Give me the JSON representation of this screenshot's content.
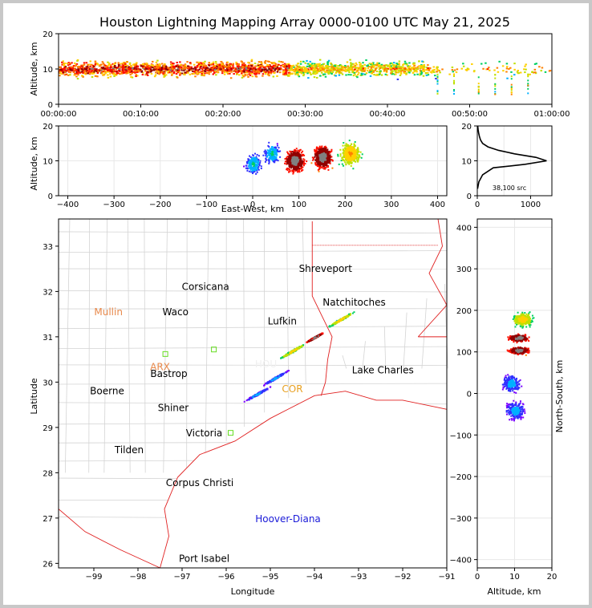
{
  "chart_data": [
    {
      "type": "scatter",
      "panel": "altitude-time",
      "title": "Houston Lightning Mapping Array 0000-0100 UTC May 21, 2025",
      "ylabel": "Altitude, km",
      "xlabel": "",
      "xlim": [
        "00:00:00",
        "01:00:00"
      ],
      "ylim": [
        0,
        20
      ],
      "x_tick_labels": [
        "00:00:00",
        "00:10:00",
        "00:20:00",
        "00:30:00",
        "00:40:00",
        "00:50:00",
        "01:00:00"
      ],
      "y_tick_labels": [
        "0",
        "10",
        "20"
      ],
      "source_density_band": {
        "altitude_km_min": 4,
        "altitude_km_max": 16,
        "altitude_km_peak": 10
      },
      "sparse_columns_after_minute": [
        46,
        48,
        51,
        53,
        55,
        57
      ]
    },
    {
      "type": "scatter",
      "panel": "altitude-east-west",
      "xlabel": "East-West, km",
      "ylabel": "Altitude, km",
      "xlim": [
        -420,
        420
      ],
      "ylim": [
        0,
        20
      ],
      "x_tick_labels": [
        "−400",
        "−300",
        "−200",
        "−100",
        "0",
        "100",
        "200",
        "300",
        "400"
      ],
      "y_tick_labels": [
        "0",
        "10",
        "20"
      ],
      "clusters": [
        {
          "x_km": 0,
          "alt_km": 9,
          "intensity": "low"
        },
        {
          "x_km": 90,
          "alt_km": 10,
          "intensity": "high"
        },
        {
          "x_km": 150,
          "alt_km": 11,
          "intensity": "high"
        },
        {
          "x_km": 210,
          "alt_km": 12,
          "intensity": "medium"
        },
        {
          "x_km": 40,
          "alt_km": 12,
          "intensity": "low"
        }
      ]
    },
    {
      "type": "line",
      "panel": "altitude-histogram",
      "xlim": [
        0,
        1400
      ],
      "ylim": [
        0,
        20
      ],
      "x_tick_labels": [
        "0",
        "1000"
      ],
      "y_tick_labels": [
        "0",
        "10",
        "20"
      ],
      "annotation": "38,100 src",
      "profile": [
        [
          5,
          2
        ],
        [
          30,
          4
        ],
        [
          100,
          6
        ],
        [
          300,
          8
        ],
        [
          900,
          9
        ],
        [
          1300,
          10
        ],
        [
          1100,
          11
        ],
        [
          700,
          12
        ],
        [
          400,
          13
        ],
        [
          200,
          14
        ],
        [
          100,
          15
        ],
        [
          60,
          16
        ],
        [
          40,
          17
        ],
        [
          25,
          18
        ],
        [
          15,
          19
        ],
        [
          8,
          20
        ]
      ]
    },
    {
      "type": "scatter",
      "panel": "plan-view-map",
      "xlabel": "Longitude",
      "ylabel": "Latitude",
      "xlim": [
        -99.8,
        -91
      ],
      "ylim": [
        25.9,
        33.6
      ],
      "x_tick_labels": [
        "−99",
        "−98",
        "−97",
        "−96",
        "−95",
        "−94",
        "−93",
        "−92",
        "−91"
      ],
      "y_tick_labels": [
        "26",
        "27",
        "28",
        "29",
        "30",
        "31",
        "32",
        "33"
      ],
      "cities": [
        {
          "name": "Shreveport",
          "lon": -93.75,
          "lat": 32.5,
          "color": "#000000"
        },
        {
          "name": "Corsicana",
          "lon": -96.47,
          "lat": 32.1,
          "color": "#000000"
        },
        {
          "name": "Mullin",
          "lon": -98.67,
          "lat": 31.55,
          "color": "#e8884a"
        },
        {
          "name": "Waco",
          "lon": -97.15,
          "lat": 31.55,
          "color": "#000000"
        },
        {
          "name": "Natchitoches",
          "lon": -93.1,
          "lat": 31.76,
          "color": "#000000"
        },
        {
          "name": "Lufkin",
          "lon": -94.73,
          "lat": 31.34,
          "color": "#000000"
        },
        {
          "name": "ARX",
          "lon": -97.5,
          "lat": 30.33,
          "color": "#e8884a"
        },
        {
          "name": "Bastrop",
          "lon": -97.3,
          "lat": 30.18,
          "color": "#000000"
        },
        {
          "name": "HOU",
          "lon": -95.1,
          "lat": 30.4,
          "color": "#f0f0f0"
        },
        {
          "name": "Lake Charles",
          "lon": -92.45,
          "lat": 30.26,
          "color": "#000000"
        },
        {
          "name": "Boerne",
          "lon": -98.7,
          "lat": 29.8,
          "color": "#000000"
        },
        {
          "name": "COR",
          "lon": -94.5,
          "lat": 29.85,
          "color": "#e8a020"
        },
        {
          "name": "Shiner",
          "lon": -97.2,
          "lat": 29.43,
          "color": "#000000"
        },
        {
          "name": "Victoria",
          "lon": -96.5,
          "lat": 28.87,
          "color": "#000000"
        },
        {
          "name": "Tilden",
          "lon": -98.2,
          "lat": 28.5,
          "color": "#000000"
        },
        {
          "name": "Corpus Christi",
          "lon": -96.6,
          "lat": 27.78,
          "color": "#000000"
        },
        {
          "name": "Hoover-Diana",
          "lon": -94.6,
          "lat": 26.98,
          "color": "#1a1ad8"
        },
        {
          "name": "Port Isabel",
          "lon": -96.5,
          "lat": 26.1,
          "color": "#000000"
        }
      ],
      "storm_clusters": [
        {
          "lon": -94.0,
          "lat": 31.0,
          "intensity": "high"
        },
        {
          "lon": -93.4,
          "lat": 31.4,
          "intensity": "medium"
        },
        {
          "lon": -94.5,
          "lat": 30.7,
          "intensity": "medium"
        },
        {
          "lon": -95.3,
          "lat": 29.75,
          "intensity": "low"
        },
        {
          "lon": -94.9,
          "lat": 30.1,
          "intensity": "low"
        }
      ]
    },
    {
      "type": "scatter",
      "panel": "north-south-altitude",
      "xlabel": "Altitude, km",
      "ylabel": "North-South, km",
      "xlim": [
        0,
        20
      ],
      "ylim": [
        -420,
        420
      ],
      "x_tick_labels": [
        "0",
        "10",
        "20"
      ],
      "y_tick_labels": [
        "−400",
        "−300",
        "−200",
        "−100",
        "0",
        "100",
        "200",
        "300",
        "400"
      ],
      "clusters": [
        {
          "alt_km": 12,
          "y_km": 180,
          "intensity": "medium"
        },
        {
          "alt_km": 11,
          "y_km": 135,
          "intensity": "high"
        },
        {
          "alt_km": 11,
          "y_km": 105,
          "intensity": "high"
        },
        {
          "alt_km": 9,
          "y_km": 25,
          "intensity": "low"
        },
        {
          "alt_km": 10,
          "y_km": -40,
          "intensity": "low"
        }
      ]
    }
  ]
}
